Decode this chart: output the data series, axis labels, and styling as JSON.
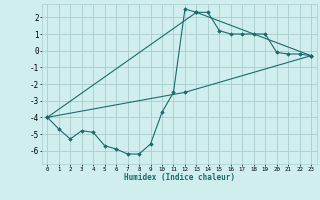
{
  "xlabel": "Humidex (Indice chaleur)",
  "background_color": "#d0eeee",
  "grid_color": "#aacccc",
  "line_color": "#1a6b6b",
  "xlim": [
    -0.5,
    23.5
  ],
  "ylim": [
    -6.8,
    2.8
  ],
  "xticks": [
    0,
    1,
    2,
    3,
    4,
    5,
    6,
    7,
    8,
    9,
    10,
    11,
    12,
    13,
    14,
    15,
    16,
    17,
    18,
    19,
    20,
    21,
    22,
    23
  ],
  "yticks": [
    -6,
    -5,
    -4,
    -3,
    -2,
    -1,
    0,
    1,
    2
  ],
  "series": [
    {
      "x": [
        0,
        1,
        2,
        3,
        4,
        5,
        6,
        7,
        8,
        9,
        10,
        11,
        12,
        13,
        14,
        15,
        16,
        17,
        18,
        19,
        20,
        21,
        22,
        23
      ],
      "y": [
        -4.0,
        -4.7,
        -5.3,
        -4.8,
        -4.9,
        -5.7,
        -5.9,
        -6.2,
        -6.2,
        -5.6,
        -3.7,
        -2.5,
        2.5,
        2.3,
        2.3,
        1.2,
        1.0,
        1.0,
        1.0,
        1.0,
        -0.1,
        -0.2,
        -0.2,
        -0.3
      ]
    },
    {
      "x": [
        0,
        12,
        23
      ],
      "y": [
        -4.0,
        -2.5,
        -0.3
      ]
    },
    {
      "x": [
        0,
        13,
        23
      ],
      "y": [
        -4.0,
        2.3,
        -0.3
      ]
    }
  ]
}
